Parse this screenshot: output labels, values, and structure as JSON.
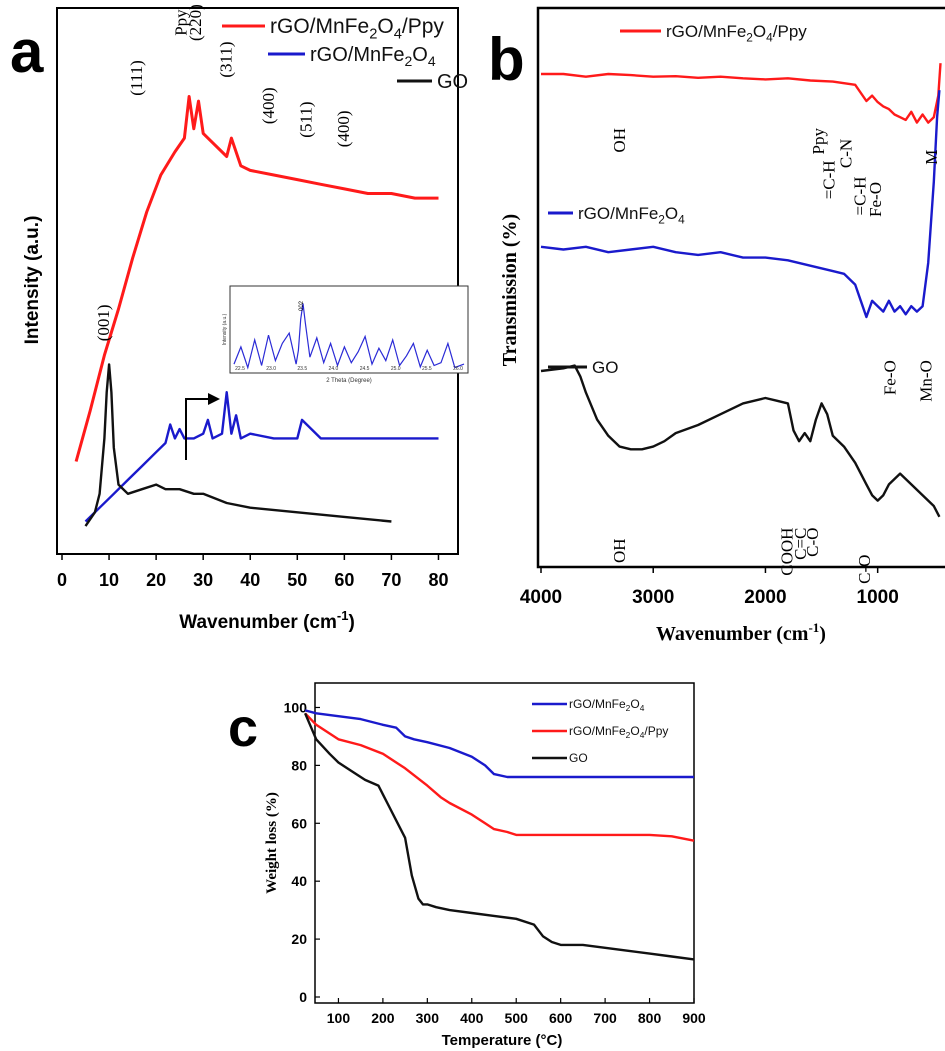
{
  "chart_data": [
    {
      "panel": "a",
      "type": "line",
      "panel_label": "a",
      "xlabel": "Wavenumber (cm",
      "xlabel_sup": "-1",
      "xlabel_close": ")",
      "ylabel": "Intensity (a.u.)",
      "xlim": [
        0,
        85
      ],
      "xticks": [
        "0",
        "10",
        "20",
        "30",
        "40",
        "50",
        "60",
        "70",
        "80"
      ],
      "xtick_values": [
        0,
        10,
        20,
        30,
        40,
        50,
        60,
        70,
        80
      ],
      "series": [
        {
          "name": "rGO/MnFe2O4/Ppy",
          "name_base": "rGO/MnFe",
          "name_sub1": "2",
          "name_mid": "O",
          "name_sub2": "4",
          "name_tail": "/Ppy",
          "color": "#ff1a1a",
          "x": [
            3,
            6,
            9,
            12,
            15,
            18,
            21,
            24,
            26,
            27,
            28,
            29,
            30,
            32,
            35,
            36,
            38,
            40,
            45,
            50,
            55,
            60,
            65,
            70,
            75,
            80
          ],
          "y": [
            17,
            28,
            40,
            50,
            61,
            71,
            79,
            84,
            87,
            96,
            89,
            95,
            88,
            86,
            83,
            87,
            81,
            80,
            79,
            78,
            77,
            76,
            75,
            75,
            74,
            74
          ]
        },
        {
          "name": "rGO/MnFe2O4",
          "name_base": "rGO/MnFe",
          "name_sub1": "2",
          "name_mid": "O",
          "name_sub2": "4",
          "name_tail": "",
          "color": "#1a1acc",
          "x": [
            5,
            8,
            11,
            14,
            17,
            20,
            22,
            23,
            24,
            25,
            26,
            28,
            30,
            31,
            32,
            34,
            35,
            36,
            37,
            38,
            40,
            45,
            50,
            51,
            55,
            60,
            65,
            70,
            75,
            80
          ],
          "y": [
            4,
            7,
            10,
            13,
            16,
            19,
            21,
            25,
            22,
            24,
            22,
            22,
            23,
            26,
            22,
            23,
            32,
            23,
            27,
            22,
            23,
            22,
            22,
            26,
            22,
            22,
            22,
            22,
            22,
            22
          ]
        },
        {
          "name": "GO",
          "name_base": "GO",
          "name_sub1": "",
          "name_mid": "",
          "name_sub2": "",
          "name_tail": "",
          "color": "#111111",
          "x": [
            5,
            7,
            8,
            9,
            9.5,
            10,
            10.5,
            11,
            12,
            14,
            17,
            20,
            22,
            25,
            28,
            30,
            35,
            40,
            50,
            60,
            70
          ],
          "y": [
            3,
            6,
            10,
            22,
            32,
            38,
            32,
            20,
            12,
            10,
            11,
            12,
            11,
            11,
            10,
            10,
            8,
            7,
            6,
            5,
            4
          ]
        }
      ],
      "peak_labels": [
        {
          "text": "(111)",
          "x": 17,
          "y": 100
        },
        {
          "text": "Ppy",
          "x": 26.5,
          "y": 112
        },
        {
          "text": "(220)",
          "x": 29.5,
          "y": 112
        },
        {
          "text": "(311)",
          "x": 36,
          "y": 104
        },
        {
          "text": "(400)",
          "x": 45,
          "y": 94
        },
        {
          "text": "(511)",
          "x": 53,
          "y": 91
        },
        {
          "text": "(400)",
          "x": 61,
          "y": 89
        },
        {
          "text": "(001)",
          "x": 10,
          "y": 47
        }
      ],
      "inset": {
        "xlabel": "2 Theta (Degree)",
        "ylabel": "Intensity (a.u.)",
        "peak_label": "002",
        "xticks": [
          "22.5",
          "23.0",
          "23.5",
          "24.0",
          "24.5",
          "25.0",
          "25.5",
          "26.0"
        ],
        "x": [
          0,
          3,
          6,
          9,
          12,
          15,
          18,
          21,
          24,
          27,
          28,
          29,
          30,
          31,
          33,
          36,
          39,
          42,
          45,
          48,
          51,
          54,
          57,
          60,
          63,
          66,
          69,
          72,
          75,
          78,
          81,
          84,
          87,
          90,
          93,
          96,
          100
        ],
        "y": [
          10,
          35,
          5,
          45,
          8,
          52,
          15,
          40,
          55,
          10,
          30,
          75,
          98,
          70,
          20,
          48,
          12,
          40,
          8,
          35,
          12,
          28,
          50,
          10,
          33,
          15,
          45,
          8,
          22,
          40,
          6,
          30,
          8,
          12,
          40,
          5,
          10
        ]
      }
    },
    {
      "panel": "b",
      "type": "line",
      "panel_label": "b",
      "xlabel": "Wavenumber (cm",
      "xlabel_sup": "-1",
      "xlabel_close": ")",
      "ylabel": "Transmission (%)",
      "xlim": [
        4000,
        400
      ],
      "xticks": [
        "4000",
        "3000",
        "2000",
        "1000"
      ],
      "xtick_values": [
        4000,
        3000,
        2000,
        1000
      ],
      "series": [
        {
          "name": "rGO/MnFe2O4/Ppy",
          "name_base": "rGO/MnFe",
          "name_sub1": "2",
          "name_mid": "O",
          "name_sub2": "4",
          "name_tail": "/Ppy",
          "color": "#ff1a1a",
          "x": [
            4000,
            3800,
            3600,
            3400,
            3200,
            3000,
            2800,
            2600,
            2400,
            2200,
            2000,
            1800,
            1600,
            1400,
            1200,
            1100,
            1050,
            1000,
            950,
            900,
            850,
            800,
            750,
            700,
            650,
            600,
            550,
            500,
            460,
            440
          ],
          "y": [
            90,
            90,
            89.5,
            90,
            89.8,
            89.5,
            89.6,
            89.3,
            89.5,
            89.2,
            89,
            89.2,
            88.8,
            88.6,
            88,
            85,
            86,
            84.8,
            84,
            83.5,
            82.5,
            82,
            81.5,
            83,
            81,
            82.5,
            81,
            82,
            86,
            92
          ]
        },
        {
          "name": "rGO/MnFe2O4",
          "name_base": "rGO/MnFe",
          "name_sub1": "2",
          "name_mid": "O",
          "name_sub2": "4",
          "name_tail": "",
          "color": "#1a1acc",
          "x": [
            4000,
            3800,
            3600,
            3400,
            3200,
            3000,
            2800,
            2600,
            2400,
            2200,
            2000,
            1800,
            1600,
            1400,
            1300,
            1200,
            1150,
            1100,
            1050,
            1000,
            950,
            900,
            850,
            800,
            750,
            700,
            650,
            600,
            550,
            500,
            470,
            450
          ],
          "y": [
            58,
            57.5,
            58,
            57,
            57.5,
            58,
            57,
            56.5,
            57,
            56,
            56,
            55.5,
            54.5,
            53.5,
            53,
            51,
            48,
            45,
            48,
            47,
            46,
            48,
            46,
            47,
            45.5,
            47,
            46,
            47,
            55,
            70,
            82,
            87
          ]
        },
        {
          "name": "GO",
          "name_base": "GO",
          "name_sub1": "",
          "name_mid": "",
          "name_sub2": "",
          "name_tail": "",
          "color": "#111111",
          "x": [
            4000,
            3800,
            3700,
            3650,
            3600,
            3500,
            3400,
            3300,
            3200,
            3100,
            3000,
            2900,
            2800,
            2600,
            2400,
            2200,
            2000,
            1900,
            1800,
            1750,
            1700,
            1650,
            1600,
            1550,
            1500,
            1450,
            1400,
            1300,
            1200,
            1100,
            1050,
            1000,
            950,
            900,
            850,
            800,
            700,
            600,
            500,
            450
          ],
          "y": [
            35,
            35.5,
            36,
            34,
            31,
            26,
            23,
            21,
            20.5,
            20.5,
            21,
            22,
            23.5,
            25,
            27,
            29,
            30,
            29.5,
            29,
            24,
            22,
            23.5,
            22,
            26,
            29,
            27,
            23,
            21,
            18,
            14,
            12,
            11,
            12,
            14,
            15,
            16,
            14,
            12,
            10,
            8
          ]
        }
      ],
      "band_labels": [
        {
          "text": "OH",
          "x": 3250,
          "y": 80
        },
        {
          "text": "Ppy",
          "x": 1480,
          "y": 80
        },
        {
          "text": "=C-H",
          "x": 1385,
          "y": 74
        },
        {
          "text": "C-N",
          "x": 1235,
          "y": 78
        },
        {
          "text": "=C-H",
          "x": 1110,
          "y": 71
        },
        {
          "text": "Fe-O",
          "x": 970,
          "y": 70
        },
        {
          "text": "M",
          "x": 470,
          "y": 76
        },
        {
          "text": "Fe-O",
          "x": 840,
          "y": 37
        },
        {
          "text": "Mn-O",
          "x": 520,
          "y": 37
        },
        {
          "text": "OH",
          "x": 3250,
          "y": 4
        },
        {
          "text": "COOH",
          "x": 1760,
          "y": 6
        },
        {
          "text": "C=C",
          "x": 1640,
          "y": 6
        },
        {
          "text": "C-O",
          "x": 1530,
          "y": 6
        },
        {
          "text": "C-O",
          "x": 1070,
          "y": 1
        }
      ]
    },
    {
      "panel": "c",
      "type": "line",
      "panel_label": "c",
      "xlabel": "Temperature (°C)",
      "ylabel": "Weight loss (%)",
      "xlim": [
        0,
        900
      ],
      "ylim": [
        0,
        105
      ],
      "xticks": [
        "100",
        "200",
        "300",
        "400",
        "500",
        "600",
        "700",
        "800",
        "900"
      ],
      "xtick_values": [
        100,
        200,
        300,
        400,
        500,
        600,
        700,
        800,
        900
      ],
      "yticks": [
        "0",
        "20",
        "40",
        "60",
        "80",
        "100"
      ],
      "ytick_values": [
        0,
        20,
        40,
        60,
        80,
        100
      ],
      "series": [
        {
          "name": "rGO/MnFe2O4",
          "name_base": "rGO/MnFe",
          "name_sub1": "2",
          "name_mid": "O",
          "name_sub2": "4",
          "name_tail": "",
          "color": "#1a1acc",
          "x": [
            25,
            50,
            100,
            150,
            200,
            230,
            250,
            270,
            300,
            350,
            400,
            430,
            450,
            480,
            500,
            600,
            700,
            800,
            900
          ],
          "y": [
            99,
            98,
            97,
            96,
            94,
            93,
            90,
            89,
            88,
            86,
            83,
            80,
            77,
            76,
            76,
            76,
            76,
            76,
            76
          ]
        },
        {
          "name": "rGO/MnFe2O4/Ppy",
          "name_base": "rGO/MnFe",
          "name_sub1": "2",
          "name_mid": "O",
          "name_sub2": "4",
          "name_tail": "/Ppy",
          "color": "#ff1a1a",
          "x": [
            25,
            50,
            80,
            100,
            150,
            200,
            250,
            300,
            330,
            350,
            400,
            430,
            450,
            480,
            500,
            550,
            600,
            700,
            800,
            850,
            900
          ],
          "y": [
            98,
            94,
            91,
            89,
            87,
            84,
            79,
            73,
            69,
            67,
            63,
            60,
            58,
            57,
            56,
            56,
            56,
            56,
            56,
            55.5,
            54
          ]
        },
        {
          "name": "GO",
          "name_base": "GO",
          "name_sub1": "",
          "name_mid": "",
          "name_sub2": "",
          "name_tail": "",
          "color": "#111111",
          "x": [
            25,
            50,
            80,
            100,
            130,
            160,
            190,
            210,
            230,
            250,
            265,
            280,
            290,
            300,
            320,
            350,
            400,
            450,
            500,
            540,
            560,
            580,
            600,
            650,
            700,
            750,
            800,
            850,
            900
          ],
          "y": [
            98,
            89,
            84,
            81,
            78,
            75,
            73,
            67,
            61,
            55,
            42,
            34,
            32,
            32,
            31,
            30,
            29,
            28,
            27,
            25,
            21,
            19,
            18,
            18,
            17,
            16,
            15,
            14,
            13
          ]
        }
      ]
    }
  ]
}
